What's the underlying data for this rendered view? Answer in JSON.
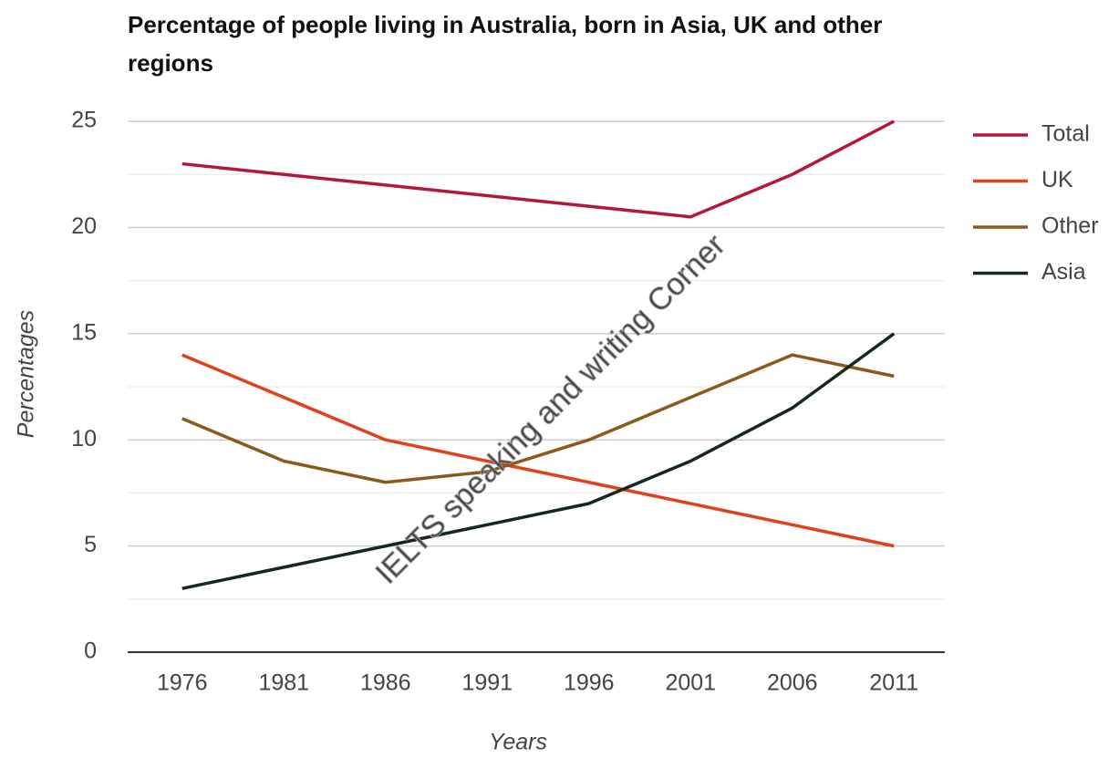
{
  "chart_data": {
    "type": "line",
    "title": "Percentage of people living in Australia, born in Asia, UK and other regions",
    "x_label": "Years",
    "y_label": "Percentages",
    "annotation": "IELTS speaking and writing Corner",
    "categories": [
      "1976",
      "1981",
      "1986",
      "1991",
      "1996",
      "2001",
      "2006",
      "2011"
    ],
    "series": [
      {
        "name": "Total",
        "color": "#b5173a",
        "values": [
          23,
          22.5,
          22,
          21.5,
          21,
          20.5,
          22.5,
          25
        ]
      },
      {
        "name": "UK",
        "color": "#e0401a",
        "values": [
          14,
          12,
          10,
          9,
          8,
          7,
          6,
          5
        ]
      },
      {
        "name": "Other",
        "color": "#8b5a1b",
        "values": [
          11,
          9,
          8,
          8.5,
          10,
          12,
          14,
          13
        ]
      },
      {
        "name": "Asia",
        "color": "#14291a",
        "values": [
          3,
          4,
          5,
          6,
          7,
          9,
          11.5,
          15
        ]
      }
    ],
    "ylim": [
      0,
      25
    ],
    "yticks": [
      0,
      5,
      10,
      15,
      20,
      25
    ],
    "minor_yticks": [
      2.5,
      7.5,
      12.5,
      17.5,
      22.5
    ],
    "grid": true,
    "legend": "right"
  }
}
